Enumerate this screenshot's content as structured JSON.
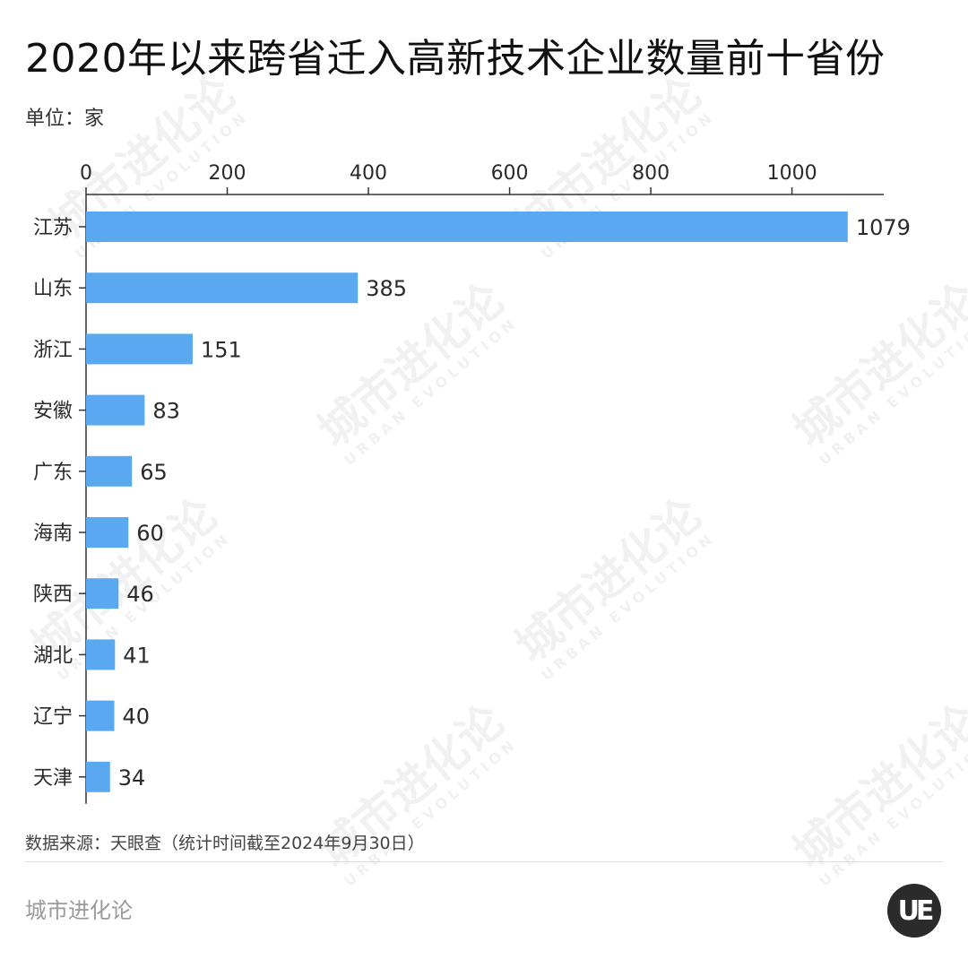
{
  "title": "2020年以来跨省迁入高新技术企业数量前十省份",
  "unit_label": "单位：家",
  "source": "数据来源：天眼查（统计时间截至2024年9月30日）",
  "brand": "城市进化论",
  "logo_text": "UE",
  "watermark": {
    "main": "城市进化论",
    "sub": "URBAN EVOLUTION"
  },
  "colors": {
    "bar": "#5aa9f0",
    "axis": "#333333"
  },
  "chart_data": {
    "type": "bar",
    "orientation": "horizontal",
    "categories": [
      "江苏",
      "山东",
      "浙江",
      "安徽",
      "广东",
      "海南",
      "陕西",
      "湖北",
      "辽宁",
      "天津"
    ],
    "values": [
      1079,
      385,
      151,
      83,
      65,
      60,
      46,
      41,
      40,
      34
    ],
    "xlim": [
      0,
      1130
    ],
    "x_ticks": [
      0,
      200,
      400,
      600,
      800,
      1000
    ],
    "x_axis_position": "top",
    "grid": false,
    "data_labels": true
  }
}
